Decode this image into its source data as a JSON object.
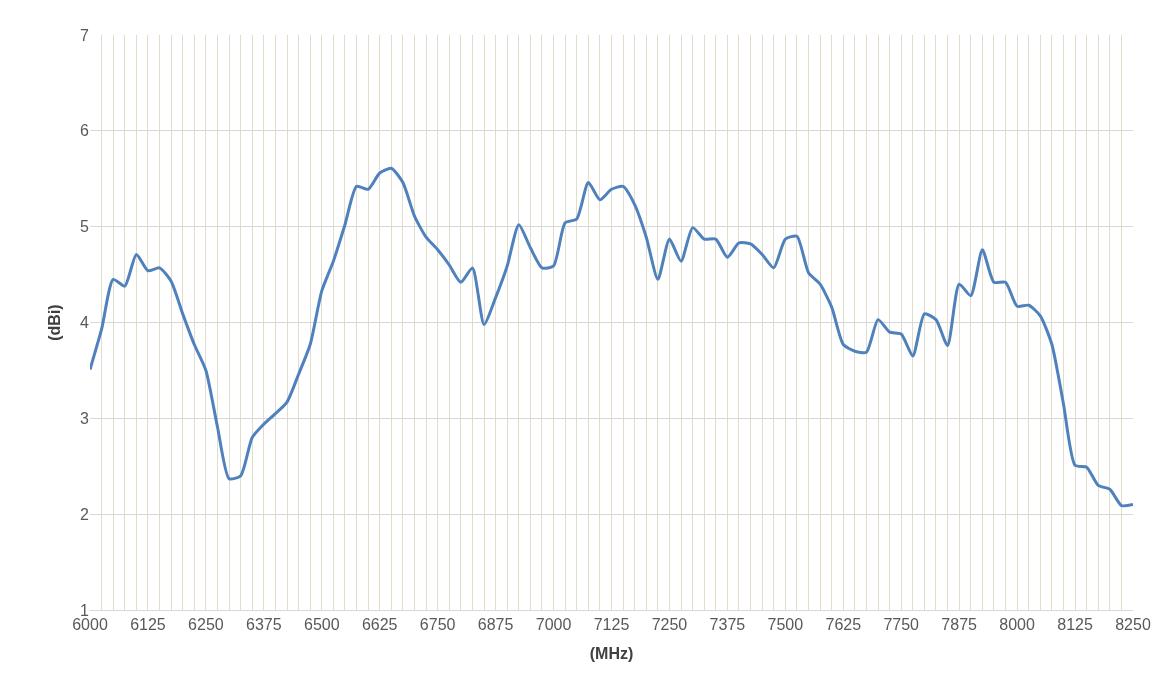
{
  "chart_data": {
    "type": "line",
    "xlabel": "(MHz)",
    "ylabel": "(dBi)",
    "x": [
      6000,
      6025,
      6050,
      6075,
      6100,
      6125,
      6150,
      6175,
      6200,
      6225,
      6250,
      6275,
      6300,
      6325,
      6350,
      6375,
      6400,
      6425,
      6450,
      6475,
      6500,
      6525,
      6550,
      6575,
      6600,
      6625,
      6650,
      6675,
      6700,
      6725,
      6750,
      6775,
      6800,
      6825,
      6850,
      6875,
      6900,
      6925,
      6950,
      6975,
      7000,
      7025,
      7050,
      7075,
      7100,
      7125,
      7150,
      7175,
      7200,
      7225,
      7250,
      7275,
      7300,
      7325,
      7350,
      7375,
      7400,
      7425,
      7450,
      7475,
      7500,
      7525,
      7550,
      7575,
      7600,
      7625,
      7650,
      7675,
      7700,
      7725,
      7750,
      7775,
      7800,
      7825,
      7850,
      7875,
      7900,
      7925,
      7950,
      7975,
      8000,
      8025,
      8050,
      8075,
      8100,
      8125,
      8150,
      8175,
      8200,
      8225,
      8250
    ],
    "series": [
      {
        "color": "#4f81bd",
        "values": [
          3.51,
          3.93,
          4.45,
          4.38,
          4.71,
          4.54,
          4.57,
          4.43,
          4.09,
          3.77,
          3.5,
          2.91,
          2.37,
          2.4,
          2.8,
          2.94,
          3.05,
          3.17,
          3.46,
          3.77,
          4.33,
          4.64,
          5.02,
          5.42,
          5.39,
          5.56,
          5.61,
          5.46,
          5.11,
          4.89,
          4.76,
          4.6,
          4.42,
          4.57,
          3.98,
          4.26,
          4.59,
          5.02,
          4.78,
          4.57,
          4.59,
          5.04,
          5.08,
          5.46,
          5.28,
          5.39,
          5.42,
          5.23,
          4.89,
          4.45,
          4.87,
          4.64,
          4.99,
          4.87,
          4.87,
          4.68,
          4.83,
          4.82,
          4.71,
          4.57,
          4.87,
          4.9,
          4.52,
          4.4,
          4.16,
          3.77,
          3.7,
          3.69,
          4.03,
          3.9,
          3.88,
          3.65,
          4.09,
          4.03,
          3.76,
          4.4,
          4.28,
          4.76,
          4.42,
          4.42,
          4.17,
          4.18,
          4.07,
          3.77,
          3.15,
          2.51,
          2.49,
          2.3,
          2.26,
          2.09,
          2.1
        ]
      }
    ],
    "xlim": [
      6000,
      8250
    ],
    "xticks": [
      6000,
      {
        "value": 6025,
        "label": null
      },
      {
        "value": 6050,
        "label": null
      },
      {
        "value": 6075,
        "label": null
      },
      {
        "value": 6100,
        "label": null
      },
      6125,
      {
        "value": 6150,
        "label": null
      },
      {
        "value": 6175,
        "label": null
      },
      {
        "value": 6200,
        "label": null
      },
      {
        "value": 6225,
        "label": null
      },
      6250,
      {
        "value": 6275,
        "label": null
      },
      {
        "value": 6300,
        "label": null
      },
      {
        "value": 6325,
        "label": null
      },
      {
        "value": 6350,
        "label": null
      },
      6375,
      {
        "value": 6400,
        "label": null
      },
      {
        "value": 6425,
        "label": null
      },
      {
        "value": 6450,
        "label": null
      },
      {
        "value": 6475,
        "label": null
      },
      6500,
      {
        "value": 6525,
        "label": null
      },
      {
        "value": 6550,
        "label": null
      },
      {
        "value": 6575,
        "label": null
      },
      {
        "value": 6600,
        "label": null
      },
      6625,
      {
        "value": 6650,
        "label": null
      },
      {
        "value": 6675,
        "label": null
      },
      {
        "value": 6700,
        "label": null
      },
      {
        "value": 6725,
        "label": null
      },
      6750,
      {
        "value": 6775,
        "label": null
      },
      {
        "value": 6800,
        "label": null
      },
      {
        "value": 6825,
        "label": null
      },
      {
        "value": 6850,
        "label": null
      },
      6875,
      {
        "value": 6900,
        "label": null
      },
      {
        "value": 6925,
        "label": null
      },
      {
        "value": 6950,
        "label": null
      },
      {
        "value": 6975,
        "label": null
      },
      7000,
      {
        "value": 7025,
        "label": null
      },
      {
        "value": 7050,
        "label": null
      },
      {
        "value": 7075,
        "label": null
      },
      {
        "value": 7100,
        "label": null
      },
      7125,
      {
        "value": 7150,
        "label": null
      },
      {
        "value": 7175,
        "label": null
      },
      {
        "value": 7200,
        "label": null
      },
      {
        "value": 7225,
        "label": null
      },
      7250,
      {
        "value": 7275,
        "label": null
      },
      {
        "value": 7300,
        "label": null
      },
      {
        "value": 7325,
        "label": null
      },
      {
        "value": 7350,
        "label": null
      },
      7375,
      {
        "value": 7400,
        "label": null
      },
      {
        "value": 7425,
        "label": null
      },
      {
        "value": 7450,
        "label": null
      },
      {
        "value": 7475,
        "label": null
      },
      7500,
      {
        "value": 7525,
        "label": null
      },
      {
        "value": 7550,
        "label": null
      },
      {
        "value": 7575,
        "label": null
      },
      {
        "value": 7600,
        "label": null
      },
      7625,
      {
        "value": 7650,
        "label": null
      },
      {
        "value": 7675,
        "label": null
      },
      {
        "value": 7700,
        "label": null
      },
      {
        "value": 7725,
        "label": null
      },
      7750,
      {
        "value": 7775,
        "label": null
      },
      {
        "value": 7800,
        "label": null
      },
      {
        "value": 7825,
        "label": null
      },
      {
        "value": 7850,
        "label": null
      },
      7875,
      {
        "value": 7900,
        "label": null
      },
      {
        "value": 7925,
        "label": null
      },
      {
        "value": 7950,
        "label": null
      },
      {
        "value": 7975,
        "label": null
      },
      8000,
      {
        "value": 8025,
        "label": null
      },
      {
        "value": 8050,
        "label": null
      },
      {
        "value": 8075,
        "label": null
      },
      {
        "value": 8100,
        "label": null
      },
      8125,
      {
        "value": 8150,
        "label": null
      },
      {
        "value": 8175,
        "label": null
      },
      {
        "value": 8200,
        "label": null
      },
      {
        "value": 8225,
        "label": null
      },
      8250
    ],
    "ylim": [
      1,
      7
    ],
    "yticks": [
      1,
      2,
      3,
      4,
      5,
      6,
      7
    ],
    "grid": true,
    "marker": "none",
    "line_style": "solid"
  }
}
